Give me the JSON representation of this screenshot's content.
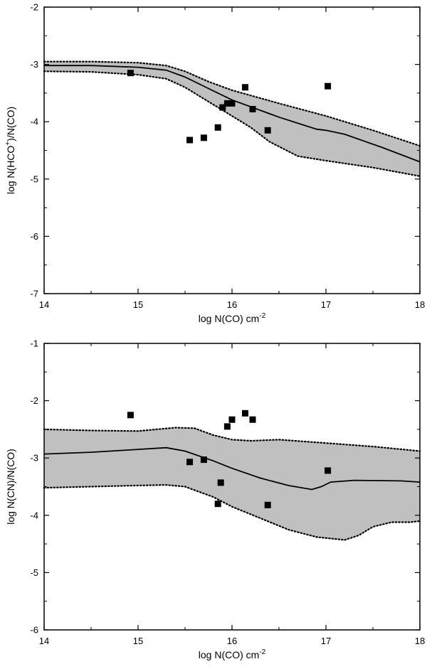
{
  "chart_data": [
    {
      "type": "scatter",
      "xlabel": "log N(CO) cm",
      "xlabel_sup": "-2",
      "ylabel_pre": "log N(HCO",
      "ylabel_sup": "+",
      "ylabel_post": ")/N(CO)",
      "xlim": [
        14,
        18
      ],
      "ylim": [
        -7,
        -2
      ],
      "xticks": [
        "14",
        "15",
        "16",
        "17",
        "18"
      ],
      "yticks": [
        "-7",
        "-6",
        "-5",
        "-4",
        "-3",
        "-2"
      ],
      "grid": false,
      "band_color": "#c0c0c0",
      "points": [
        [
          14.92,
          -3.15
        ],
        [
          15.55,
          -4.32
        ],
        [
          15.7,
          -4.28
        ],
        [
          15.85,
          -4.1
        ],
        [
          15.9,
          -3.75
        ],
        [
          15.95,
          -3.68
        ],
        [
          16.0,
          -3.68
        ],
        [
          16.14,
          -3.4
        ],
        [
          16.22,
          -3.78
        ],
        [
          16.38,
          -4.15
        ],
        [
          17.02,
          -3.38
        ]
      ],
      "model_line": [
        [
          14,
          -3.02
        ],
        [
          14.5,
          -3.02
        ],
        [
          15.0,
          -3.05
        ],
        [
          15.3,
          -3.1
        ],
        [
          15.5,
          -3.22
        ],
        [
          15.75,
          -3.42
        ],
        [
          16.0,
          -3.62
        ],
        [
          16.5,
          -3.92
        ],
        [
          16.9,
          -4.13
        ],
        [
          17.0,
          -4.15
        ],
        [
          17.2,
          -4.22
        ],
        [
          17.6,
          -4.45
        ],
        [
          18,
          -4.7
        ]
      ],
      "band_upper": [
        [
          14,
          -2.95
        ],
        [
          14.5,
          -2.95
        ],
        [
          15.0,
          -2.97
        ],
        [
          15.3,
          -3.02
        ],
        [
          15.5,
          -3.12
        ],
        [
          15.75,
          -3.3
        ],
        [
          16.0,
          -3.45
        ],
        [
          16.5,
          -3.68
        ],
        [
          17.0,
          -3.9
        ],
        [
          17.5,
          -4.15
        ],
        [
          18,
          -4.42
        ]
      ],
      "band_lower": [
        [
          14,
          -3.12
        ],
        [
          14.5,
          -3.13
        ],
        [
          15.0,
          -3.18
        ],
        [
          15.3,
          -3.25
        ],
        [
          15.5,
          -3.4
        ],
        [
          15.75,
          -3.65
        ],
        [
          16.0,
          -3.9
        ],
        [
          16.2,
          -4.1
        ],
        [
          16.4,
          -4.35
        ],
        [
          16.7,
          -4.6
        ],
        [
          17.0,
          -4.68
        ],
        [
          17.5,
          -4.8
        ],
        [
          18,
          -4.95
        ]
      ]
    },
    {
      "type": "scatter",
      "xlabel": "log N(CO) cm",
      "xlabel_sup": "-2",
      "ylabel_pre": "log N(CN)/N(CO)",
      "ylabel_sup": "",
      "ylabel_post": "",
      "xlim": [
        14,
        18
      ],
      "ylim": [
        -6,
        -1
      ],
      "xticks": [
        "14",
        "15",
        "16",
        "17",
        "18"
      ],
      "yticks": [
        "-6",
        "-5",
        "-4",
        "-3",
        "-2",
        "-1"
      ],
      "grid": false,
      "band_color": "#c0c0c0",
      "points": [
        [
          14.92,
          -2.25
        ],
        [
          15.55,
          -3.07
        ],
        [
          15.7,
          -3.03
        ],
        [
          15.85,
          -3.8
        ],
        [
          15.88,
          -3.43
        ],
        [
          15.95,
          -2.45
        ],
        [
          16.0,
          -2.33
        ],
        [
          16.14,
          -2.22
        ],
        [
          16.22,
          -2.33
        ],
        [
          16.38,
          -3.82
        ],
        [
          17.02,
          -3.22
        ]
      ],
      "model_line": [
        [
          14,
          -2.93
        ],
        [
          14.5,
          -2.9
        ],
        [
          15.0,
          -2.85
        ],
        [
          15.3,
          -2.82
        ],
        [
          15.5,
          -2.88
        ],
        [
          15.8,
          -3.05
        ],
        [
          16.0,
          -3.18
        ],
        [
          16.3,
          -3.35
        ],
        [
          16.6,
          -3.48
        ],
        [
          16.85,
          -3.55
        ],
        [
          16.95,
          -3.5
        ],
        [
          17.05,
          -3.42
        ],
        [
          17.3,
          -3.39
        ],
        [
          17.8,
          -3.4
        ],
        [
          18,
          -3.42
        ]
      ],
      "band_upper": [
        [
          14,
          -2.5
        ],
        [
          14.5,
          -2.52
        ],
        [
          15.0,
          -2.53
        ],
        [
          15.2,
          -2.5
        ],
        [
          15.4,
          -2.47
        ],
        [
          15.6,
          -2.48
        ],
        [
          15.8,
          -2.6
        ],
        [
          16.0,
          -2.68
        ],
        [
          16.2,
          -2.7
        ],
        [
          16.5,
          -2.68
        ],
        [
          17.0,
          -2.74
        ],
        [
          17.5,
          -2.8
        ],
        [
          18,
          -2.88
        ]
      ],
      "band_lower": [
        [
          14,
          -3.52
        ],
        [
          14.5,
          -3.5
        ],
        [
          15.0,
          -3.48
        ],
        [
          15.3,
          -3.47
        ],
        [
          15.5,
          -3.5
        ],
        [
          15.8,
          -3.68
        ],
        [
          16.0,
          -3.85
        ],
        [
          16.3,
          -4.05
        ],
        [
          16.6,
          -4.25
        ],
        [
          16.9,
          -4.38
        ],
        [
          17.2,
          -4.43
        ],
        [
          17.35,
          -4.35
        ],
        [
          17.5,
          -4.2
        ],
        [
          17.7,
          -4.12
        ],
        [
          17.9,
          -4.12
        ],
        [
          18,
          -4.1
        ]
      ]
    }
  ]
}
